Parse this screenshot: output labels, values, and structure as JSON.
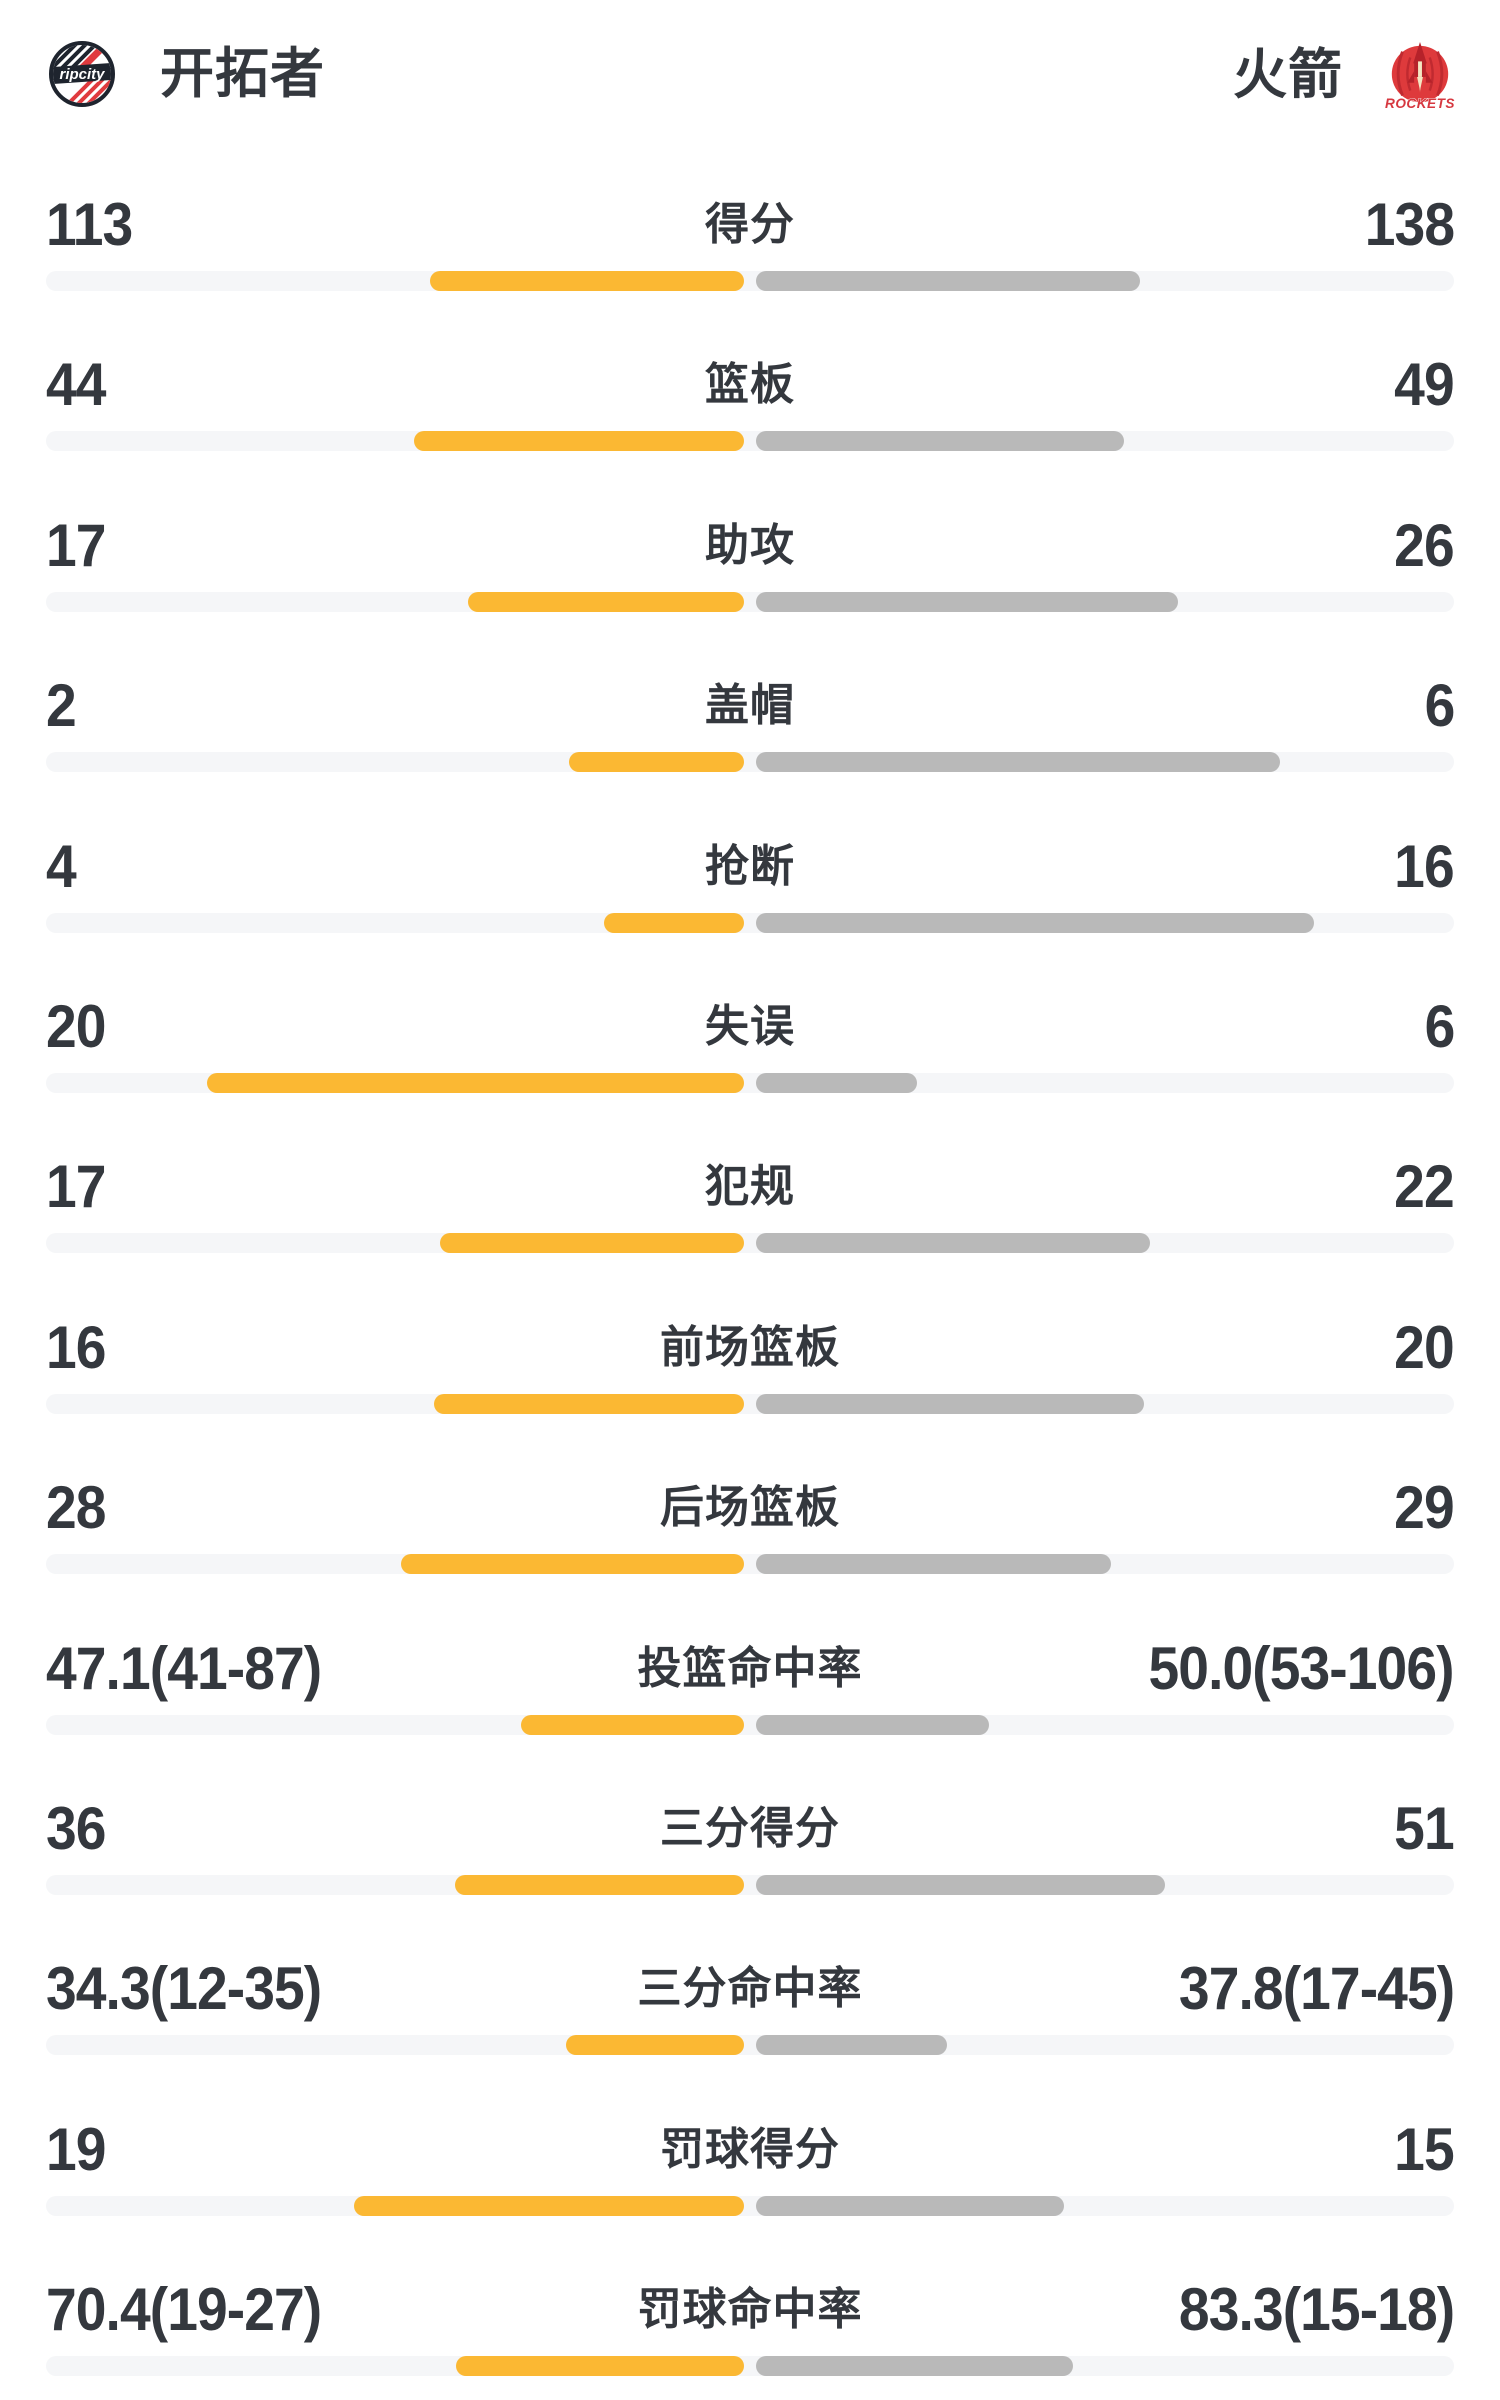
{
  "header": {
    "home_team": {
      "name": "开拓者",
      "badge_text": "ripcity"
    },
    "away_team": {
      "name": "火箭",
      "badge_text": "ROCKETS"
    }
  },
  "colors": {
    "home_bar": "#FBB833",
    "away_bar": "#B9B9B9",
    "track": "#F5F6F8",
    "text": "#34383E",
    "blazers_dark": "#1E242E",
    "blazers_red": "#E03A3E",
    "rockets_red": "#DE3A3C",
    "rockets_dark_red": "#B5222A",
    "rockets_cream": "#F4E6C3"
  },
  "chart_data": {
    "type": "bar",
    "orientation": "horizontal-paired-from-center",
    "legend": [
      "开拓者",
      "火箭"
    ],
    "legend_position": "top",
    "grid": false,
    "rows": [
      {
        "label": "得分",
        "left": "113",
        "right": "138",
        "left_value": 113,
        "right_value": 138,
        "percent": false
      },
      {
        "label": "篮板",
        "left": "44",
        "right": "49",
        "left_value": 44,
        "right_value": 49,
        "percent": false
      },
      {
        "label": "助攻",
        "left": "17",
        "right": "26",
        "left_value": 17,
        "right_value": 26,
        "percent": false
      },
      {
        "label": "盖帽",
        "left": "2",
        "right": "6",
        "left_value": 2,
        "right_value": 6,
        "percent": false
      },
      {
        "label": "抢断",
        "left": "4",
        "right": "16",
        "left_value": 4,
        "right_value": 16,
        "percent": false
      },
      {
        "label": "失误",
        "left": "20",
        "right": "6",
        "left_value": 20,
        "right_value": 6,
        "percent": false
      },
      {
        "label": "犯规",
        "left": "17",
        "right": "22",
        "left_value": 17,
        "right_value": 22,
        "percent": false
      },
      {
        "label": "前场篮板",
        "left": "16",
        "right": "20",
        "left_value": 16,
        "right_value": 20,
        "percent": false
      },
      {
        "label": "后场篮板",
        "left": "28",
        "right": "29",
        "left_value": 28,
        "right_value": 29,
        "percent": false
      },
      {
        "label": "投篮命中率",
        "left": "47.1(41-87)",
        "right": "50.0(53-106)",
        "left_value": 47.1,
        "right_value": 50.0,
        "percent": true
      },
      {
        "label": "三分得分",
        "left": "36",
        "right": "51",
        "left_value": 36,
        "right_value": 51,
        "percent": false
      },
      {
        "label": "三分命中率",
        "left": "34.3(12-35)",
        "right": "37.8(17-45)",
        "left_value": 34.3,
        "right_value": 37.8,
        "percent": true
      },
      {
        "label": "罚球得分",
        "left": "19",
        "right": "15",
        "left_value": 19,
        "right_value": 15,
        "percent": false
      },
      {
        "label": "罚球命中率",
        "left": "70.4(19-27)",
        "right": "83.3(15-18)",
        "left_value": 70.4,
        "right_value": 83.3,
        "percent": true
      }
    ],
    "bar_length_rule": {
      "count_rows": "fraction_of_half_track = value / (left_value + right_value)",
      "percent_rows": "fraction_of_half_track = value / (value + 100)"
    }
  }
}
